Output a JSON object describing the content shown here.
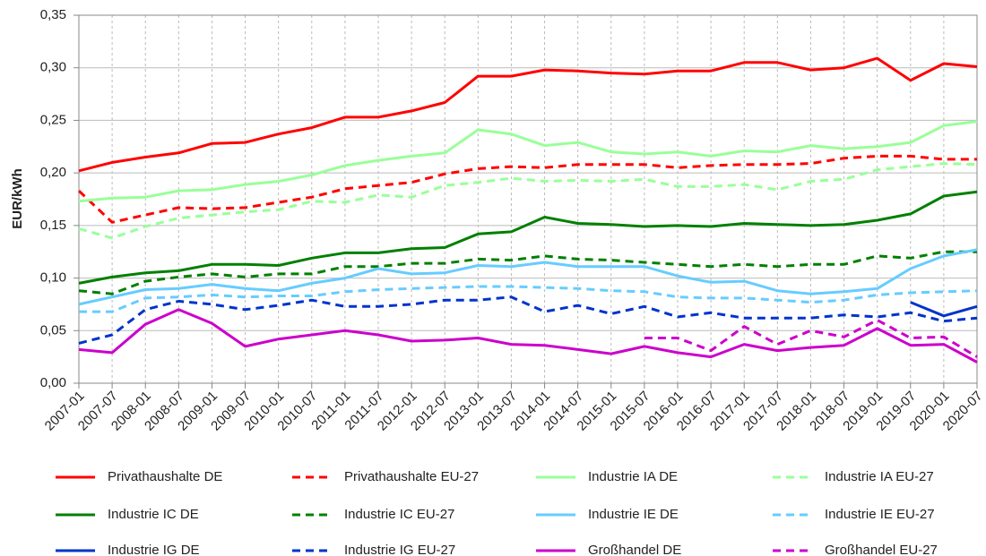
{
  "chart_data": {
    "type": "line",
    "y_label": "EUR/kWh",
    "categories": [
      "2007-01",
      "2007-07",
      "2008-01",
      "2008-07",
      "2009-01",
      "2009-07",
      "2010-01",
      "2010-07",
      "2011-01",
      "2011-07",
      "2012-01",
      "2012-07",
      "2013-01",
      "2013-07",
      "2014-01",
      "2014-07",
      "2015-01",
      "2015-07",
      "2016-01",
      "2016-07",
      "2017-01",
      "2017-07",
      "2018-01",
      "2018-07",
      "2019-01",
      "2019-07",
      "2020-01",
      "2020-07"
    ],
    "ylim": [
      0,
      0.35
    ],
    "yticks": [
      {
        "value": 0,
        "label": "0,00"
      },
      {
        "value": 0.05,
        "label": "0,05"
      },
      {
        "value": 0.1,
        "label": "0,10"
      },
      {
        "value": 0.15,
        "label": "0,15"
      },
      {
        "value": 0.2,
        "label": "0,20"
      },
      {
        "value": 0.25,
        "label": "0,25"
      },
      {
        "value": 0.3,
        "label": "0,30"
      },
      {
        "value": 0.35,
        "label": "0,35"
      }
    ],
    "grid": true,
    "legend_position": "bottom",
    "series": [
      {
        "name": "Privathaushalte DE",
        "color": "#ff0000",
        "line_style": "solid",
        "values": [
          0.202,
          0.21,
          0.215,
          0.219,
          0.228,
          0.229,
          0.237,
          0.243,
          0.253,
          0.253,
          0.259,
          0.267,
          0.292,
          0.292,
          0.298,
          0.297,
          0.295,
          0.294,
          0.297,
          0.297,
          0.305,
          0.305,
          0.298,
          0.3,
          0.309,
          0.288,
          0.304,
          0.301
        ]
      },
      {
        "name": "Privathaushalte EU-27",
        "color": "#ff0000",
        "line_style": "dashed",
        "values": [
          0.183,
          0.153,
          0.16,
          0.167,
          0.166,
          0.167,
          0.172,
          0.177,
          0.185,
          0.188,
          0.191,
          0.199,
          0.204,
          0.206,
          0.205,
          0.208,
          0.208,
          0.208,
          0.205,
          0.207,
          0.208,
          0.208,
          0.209,
          0.214,
          0.216,
          0.216,
          0.213,
          0.213
        ]
      },
      {
        "name": "Industrie IA DE",
        "color": "#99ff99",
        "line_style": "solid",
        "values": [
          0.173,
          0.176,
          0.177,
          0.183,
          0.184,
          0.189,
          0.192,
          0.198,
          0.207,
          0.212,
          0.216,
          0.219,
          0.241,
          0.237,
          0.226,
          0.229,
          0.22,
          0.218,
          0.22,
          0.216,
          0.221,
          0.22,
          0.226,
          0.223,
          0.225,
          0.229,
          0.245,
          0.249
        ]
      },
      {
        "name": "Industrie IA EU-27",
        "color": "#99ff99",
        "line_style": "dashed",
        "values": [
          0.147,
          0.138,
          0.149,
          0.157,
          0.16,
          0.163,
          0.165,
          0.173,
          0.172,
          0.179,
          0.177,
          0.188,
          0.191,
          0.195,
          0.192,
          0.193,
          0.192,
          0.194,
          0.187,
          0.187,
          0.189,
          0.184,
          0.192,
          0.194,
          0.203,
          0.206,
          0.209,
          0.208
        ]
      },
      {
        "name": "Industrie IC DE",
        "color": "#008000",
        "line_style": "solid",
        "values": [
          0.095,
          0.101,
          0.105,
          0.107,
          0.113,
          0.113,
          0.112,
          0.119,
          0.124,
          0.124,
          0.128,
          0.129,
          0.142,
          0.144,
          0.158,
          0.152,
          0.151,
          0.149,
          0.15,
          0.149,
          0.152,
          0.151,
          0.15,
          0.151,
          0.155,
          0.161,
          0.178,
          0.182
        ]
      },
      {
        "name": "Industrie IC EU-27",
        "color": "#008000",
        "line_style": "dashed",
        "values": [
          0.088,
          0.085,
          0.097,
          0.101,
          0.104,
          0.101,
          0.104,
          0.104,
          0.111,
          0.111,
          0.114,
          0.114,
          0.118,
          0.117,
          0.121,
          0.118,
          0.117,
          0.115,
          0.113,
          0.111,
          0.113,
          0.111,
          0.113,
          0.113,
          0.121,
          0.119,
          0.125,
          0.125
        ]
      },
      {
        "name": "Industrie IE DE",
        "color": "#66ccff",
        "line_style": "solid",
        "values": [
          0.075,
          0.082,
          0.089,
          0.09,
          0.094,
          0.09,
          0.088,
          0.095,
          0.1,
          0.109,
          0.104,
          0.105,
          0.112,
          0.111,
          0.115,
          0.111,
          0.111,
          0.111,
          0.102,
          0.096,
          0.097,
          0.088,
          0.085,
          0.087,
          0.09,
          0.109,
          0.121,
          0.127
        ]
      },
      {
        "name": "Industrie IE EU-27",
        "color": "#66ccff",
        "line_style": "dashed",
        "values": [
          0.068,
          0.068,
          0.081,
          0.082,
          0.084,
          0.082,
          0.083,
          0.083,
          0.087,
          0.089,
          0.09,
          0.091,
          0.092,
          0.092,
          0.091,
          0.09,
          0.088,
          0.087,
          0.082,
          0.081,
          0.081,
          0.079,
          0.077,
          0.079,
          0.084,
          0.086,
          0.087,
          0.088
        ]
      },
      {
        "name": "Industrie IG DE",
        "color": "#0033cc",
        "line_style": "solid",
        "values": [
          null,
          null,
          null,
          null,
          null,
          null,
          null,
          null,
          null,
          null,
          null,
          null,
          null,
          null,
          null,
          null,
          null,
          null,
          null,
          null,
          null,
          null,
          null,
          null,
          null,
          0.077,
          0.064,
          0.073
        ]
      },
      {
        "name": "Industrie IG EU-27",
        "color": "#0033cc",
        "line_style": "dashed",
        "values": [
          0.038,
          0.046,
          0.07,
          0.078,
          0.075,
          0.07,
          0.074,
          0.079,
          0.073,
          0.073,
          0.075,
          0.079,
          0.079,
          0.082,
          0.068,
          0.074,
          0.066,
          0.073,
          0.063,
          0.067,
          0.062,
          0.062,
          0.062,
          0.065,
          0.063,
          0.067,
          0.059,
          0.062
        ]
      },
      {
        "name": "Großhandel DE",
        "color": "#cc00cc",
        "line_style": "solid",
        "values": [
          0.032,
          0.029,
          0.056,
          0.07,
          0.057,
          0.035,
          0.042,
          0.046,
          0.05,
          0.046,
          0.04,
          0.041,
          0.043,
          0.037,
          0.036,
          0.032,
          0.028,
          0.035,
          0.029,
          0.025,
          0.037,
          0.031,
          0.034,
          0.036,
          0.052,
          0.036,
          0.037,
          0.02
        ]
      },
      {
        "name": "Großhandel EU-27",
        "color": "#cc00cc",
        "line_style": "dashed",
        "values": [
          null,
          null,
          null,
          null,
          null,
          null,
          null,
          null,
          null,
          null,
          null,
          null,
          null,
          null,
          null,
          null,
          null,
          0.043,
          0.043,
          0.031,
          0.054,
          0.037,
          0.05,
          0.044,
          0.06,
          0.043,
          0.044,
          0.025
        ]
      }
    ]
  }
}
